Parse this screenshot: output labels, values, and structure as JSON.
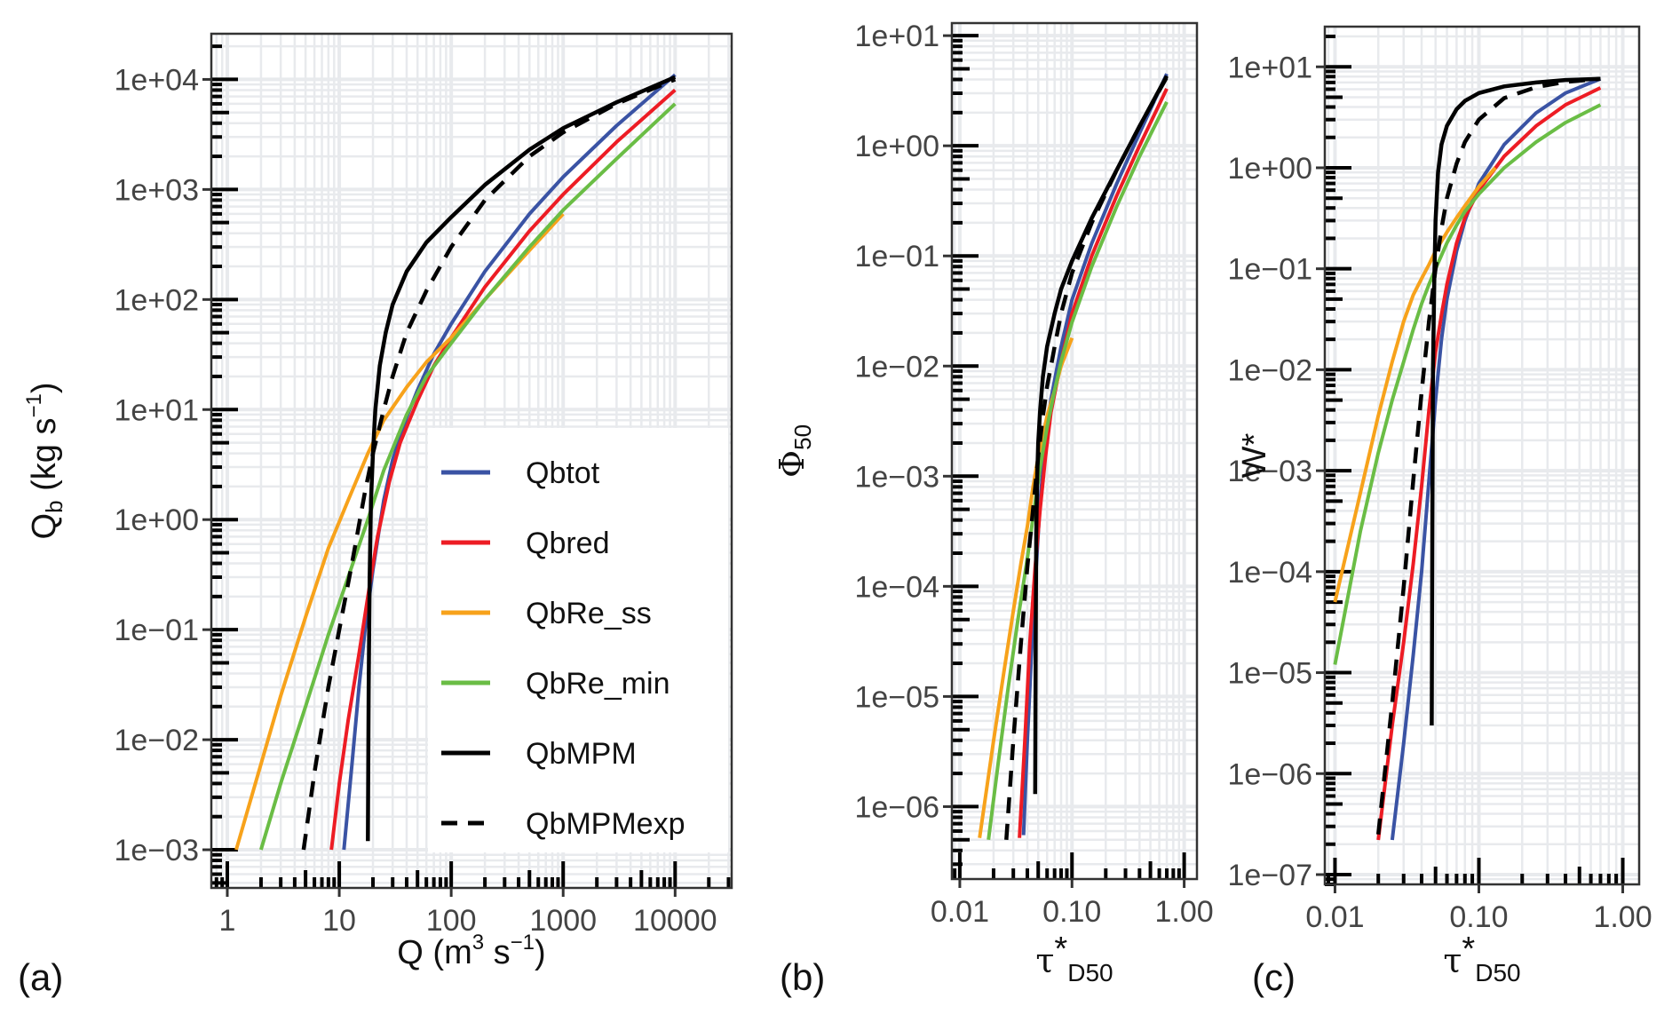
{
  "colors": {
    "Qbtot": "#3a53a4",
    "Qbred": "#ed1c24",
    "QbRe_ss": "#f7a21b",
    "QbRe_min": "#6abd45",
    "QbMPM": "#000000",
    "QbMPMexp": "#000000",
    "grid": "#e8eaed",
    "tick_label": "#444444"
  },
  "legend": {
    "placement": "inside-bottom-right of panel (a)",
    "items": [
      {
        "name": "Qbtot",
        "style": "solid"
      },
      {
        "name": "Qbred",
        "style": "solid"
      },
      {
        "name": "QbRe_ss",
        "style": "solid"
      },
      {
        "name": "QbRe_min",
        "style": "solid"
      },
      {
        "name": "QbMPM",
        "style": "solid"
      },
      {
        "name": "QbMPMexp",
        "style": "dashed"
      }
    ]
  },
  "chart_data": [
    {
      "panel_label": "(a)",
      "type": "line",
      "xscale": "log",
      "yscale": "log",
      "xlabel": "Q (m³ s⁻¹)",
      "xlabel_parts": {
        "main": "Q (m",
        "sup1": "3",
        "mid": " s",
        "sup2": "−1",
        "end": ")"
      },
      "ylabel": "Qb (kg s⁻¹)",
      "ylabel_parts": {
        "main": "Q",
        "sub": "b",
        "mid": " (kg s",
        "sup": "−1",
        "end": ")"
      },
      "xlim": [
        0.72,
        32000
      ],
      "ylim": [
        0.00045,
        26000
      ],
      "xticks": [
        1,
        10,
        100,
        1000,
        10000
      ],
      "xtick_labels": [
        "1",
        "10",
        "100",
        "1000",
        "10000"
      ],
      "yticks": [
        0.001,
        0.01,
        0.1,
        1,
        10,
        100,
        1000,
        10000
      ],
      "ytick_labels": [
        "1e−03",
        "1e−02",
        "1e−01",
        "1e+00",
        "1e+01",
        "1e+02",
        "1e+03",
        "1e+04"
      ],
      "grid": true,
      "series": [
        {
          "name": "Qbtot",
          "x": [
            11,
            13,
            15,
            17,
            20,
            25,
            30,
            40,
            50,
            70,
            100,
            200,
            500,
            1000,
            3000,
            10000
          ],
          "y": [
            0.001,
            0.006,
            0.03,
            0.1,
            0.35,
            1.5,
            3.5,
            8.5,
            15,
            32,
            60,
            180,
            600,
            1300,
            3800,
            11000
          ]
        },
        {
          "name": "Qbred",
          "x": [
            8.5,
            10,
            12,
            15,
            18,
            22,
            28,
            35,
            50,
            70,
            100,
            200,
            500,
            1000,
            3000,
            10000
          ],
          "y": [
            0.001,
            0.004,
            0.015,
            0.06,
            0.2,
            0.7,
            2.2,
            5,
            12,
            25,
            45,
            130,
            420,
            900,
            2700,
            8000
          ]
        },
        {
          "name": "QbRe_ss",
          "x": [
            1.2,
            2,
            3,
            5,
            8,
            12,
            18,
            25,
            40,
            60,
            100,
            200,
            500,
            1000
          ],
          "y": [
            0.001,
            0.006,
            0.025,
            0.13,
            0.55,
            1.5,
            4,
            8,
            16,
            27,
            45,
            100,
            280,
            600
          ]
        },
        {
          "name": "QbRe_min",
          "x": [
            2,
            3,
            5,
            8,
            12,
            18,
            25,
            40,
            60,
            100,
            200,
            500,
            1000,
            3000,
            10000
          ],
          "y": [
            0.001,
            0.004,
            0.02,
            0.09,
            0.3,
            1,
            2.8,
            9,
            20,
            40,
            100,
            300,
            650,
            1900,
            6000
          ]
        },
        {
          "name": "QbMPM",
          "x": [
            18,
            18.3,
            18.7,
            19.2,
            20,
            21,
            23,
            26,
            30,
            40,
            60,
            100,
            200,
            500,
            1000,
            3000,
            10000
          ],
          "y": [
            0.0012,
            0.03,
            0.3,
            1.5,
            4,
            10,
            25,
            50,
            90,
            180,
            330,
            560,
            1100,
            2300,
            3600,
            6200,
            10500
          ]
        },
        {
          "name": "QbMPMexp",
          "x": [
            4.8,
            6,
            8,
            10,
            13,
            17,
            20,
            25,
            30,
            40,
            60,
            100,
            200,
            500,
            1000,
            3000,
            10000
          ],
          "y": [
            0.001,
            0.005,
            0.03,
            0.1,
            0.4,
            1.8,
            4,
            10,
            20,
            50,
            120,
            300,
            800,
            2000,
            3300,
            6000,
            10000
          ]
        }
      ]
    },
    {
      "panel_label": "(b)",
      "type": "line",
      "xscale": "log",
      "yscale": "log",
      "xlabel": "τ*D50",
      "xlabel_parts": {
        "main": "τ",
        "sup": "*",
        "sub": "D50"
      },
      "ylabel": "Φ50",
      "ylabel_parts": {
        "main": "Φ",
        "sub": "50"
      },
      "xlim": [
        0.0085,
        1.3
      ],
      "ylim": [
        2.2e-07,
        13
      ],
      "xticks": [
        0.01,
        0.1,
        1
      ],
      "xtick_labels": [
        "0.01",
        "0.10",
        "1.00"
      ],
      "yticks": [
        1e-06,
        1e-05,
        0.0001,
        0.001,
        0.01,
        0.1,
        1,
        10
      ],
      "ytick_labels": [
        "1e−06",
        "1e−05",
        "1e−04",
        "1e−03",
        "1e−02",
        "1e−01",
        "1e+00",
        "1e+01"
      ],
      "grid": true,
      "series": [
        {
          "name": "Qbtot",
          "x": [
            0.037,
            0.04,
            0.044,
            0.048,
            0.052,
            0.058,
            0.065,
            0.08,
            0.1,
            0.15,
            0.25,
            0.4,
            0.7
          ],
          "y": [
            5.5e-07,
            4e-06,
            3e-05,
            0.00015,
            0.0006,
            0.002,
            0.005,
            0.015,
            0.04,
            0.13,
            0.45,
            1.3,
            4.5
          ]
        },
        {
          "name": "Qbred",
          "x": [
            0.034,
            0.038,
            0.042,
            0.047,
            0.052,
            0.058,
            0.065,
            0.08,
            0.1,
            0.15,
            0.25,
            0.4,
            0.7
          ],
          "y": [
            5.2e-07,
            4e-06,
            3e-05,
            0.00015,
            0.0005,
            0.0015,
            0.0038,
            0.011,
            0.03,
            0.1,
            0.35,
            1,
            3.3
          ]
        },
        {
          "name": "QbRe_ss",
          "x": [
            0.015,
            0.02,
            0.025,
            0.03,
            0.035,
            0.04,
            0.045,
            0.05,
            0.06,
            0.07,
            0.08,
            0.1
          ],
          "y": [
            5.2e-07,
            4e-06,
            1.8e-05,
            6e-05,
            0.00016,
            0.00035,
            0.0008,
            0.0015,
            0.0035,
            0.006,
            0.01,
            0.018
          ]
        },
        {
          "name": "QbRe_min",
          "x": [
            0.018,
            0.022,
            0.027,
            0.033,
            0.04,
            0.046,
            0.052,
            0.06,
            0.07,
            0.08,
            0.1,
            0.15,
            0.25,
            0.4,
            0.7
          ],
          "y": [
            5e-07,
            2.5e-06,
            1.2e-05,
            5e-05,
            0.00018,
            0.0005,
            0.0012,
            0.0028,
            0.006,
            0.011,
            0.025,
            0.08,
            0.28,
            0.8,
            2.5
          ]
        },
        {
          "name": "QbMPM",
          "x": [
            0.047,
            0.0475,
            0.048,
            0.049,
            0.05,
            0.052,
            0.055,
            0.06,
            0.07,
            0.08,
            0.1,
            0.15,
            0.25,
            0.4,
            0.7
          ],
          "y": [
            1.3e-06,
            3e-05,
            0.0003,
            0.001,
            0.002,
            0.004,
            0.008,
            0.015,
            0.03,
            0.05,
            0.09,
            0.22,
            0.6,
            1.5,
            4.3
          ]
        },
        {
          "name": "QbMPMexp",
          "x": [
            0.026,
            0.03,
            0.035,
            0.04,
            0.045,
            0.05,
            0.055,
            0.06,
            0.07,
            0.08,
            0.1,
            0.15,
            0.25,
            0.4,
            0.7
          ],
          "y": [
            5e-07,
            4e-06,
            3e-05,
            0.00015,
            0.0005,
            0.0015,
            0.0035,
            0.0065,
            0.015,
            0.03,
            0.07,
            0.2,
            0.6,
            1.5,
            4.2
          ]
        }
      ]
    },
    {
      "panel_label": "(c)",
      "type": "line",
      "xscale": "log",
      "yscale": "log",
      "xlabel": "τ*D50",
      "xlabel_parts": {
        "main": "τ",
        "sup": "*",
        "sub": "D50"
      },
      "ylabel": "W*",
      "ylabel_parts": {
        "main": "W*"
      },
      "xlim": [
        0.0085,
        1.3
      ],
      "ylim": [
        8e-08,
        25
      ],
      "xticks": [
        0.01,
        0.1,
        1
      ],
      "xtick_labels": [
        "0.01",
        "0.10",
        "1.00"
      ],
      "yticks": [
        1e-07,
        1e-06,
        1e-05,
        0.0001,
        0.001,
        0.01,
        0.1,
        1,
        10
      ],
      "ytick_labels": [
        "1e−07",
        "1e−06",
        "1e−05",
        "1e−04",
        "1e−03",
        "1e−02",
        "1e−01",
        "1e+00",
        "1e+01"
      ],
      "grid": true,
      "series": [
        {
          "name": "Qbtot",
          "x": [
            0.025,
            0.03,
            0.035,
            0.04,
            0.045,
            0.05,
            0.055,
            0.06,
            0.07,
            0.08,
            0.1,
            0.15,
            0.25,
            0.4,
            0.7
          ],
          "y": [
            2.2e-07,
            2e-06,
            1.5e-05,
            0.0001,
            0.0008,
            0.005,
            0.02,
            0.05,
            0.15,
            0.3,
            0.7,
            1.7,
            3.5,
            5.5,
            7.6
          ]
        },
        {
          "name": "Qbred",
          "x": [
            0.02,
            0.025,
            0.03,
            0.035,
            0.04,
            0.045,
            0.05,
            0.055,
            0.06,
            0.07,
            0.08,
            0.1,
            0.15,
            0.25,
            0.4,
            0.7
          ],
          "y": [
            2.2e-07,
            3e-06,
            2e-05,
            0.00012,
            0.0007,
            0.004,
            0.015,
            0.035,
            0.07,
            0.18,
            0.32,
            0.6,
            1.3,
            2.6,
            4.2,
            6.2
          ]
        },
        {
          "name": "QbRe_ss",
          "x": [
            0.01,
            0.015,
            0.02,
            0.025,
            0.03,
            0.035,
            0.04,
            0.045,
            0.05,
            0.06,
            0.07,
            0.08,
            0.1,
            0.13
          ],
          "y": [
            5e-05,
            0.0006,
            0.0035,
            0.012,
            0.03,
            0.055,
            0.08,
            0.11,
            0.15,
            0.23,
            0.32,
            0.42,
            0.65,
            1.0
          ]
        },
        {
          "name": "QbRe_min",
          "x": [
            0.01,
            0.015,
            0.02,
            0.025,
            0.03,
            0.035,
            0.04,
            0.045,
            0.05,
            0.06,
            0.07,
            0.08,
            0.1,
            0.15,
            0.25,
            0.4,
            0.7
          ],
          "y": [
            1.2e-05,
            0.00025,
            0.0015,
            0.005,
            0.012,
            0.025,
            0.045,
            0.07,
            0.1,
            0.18,
            0.27,
            0.37,
            0.55,
            1.0,
            1.8,
            2.8,
            4.2
          ]
        },
        {
          "name": "QbMPM",
          "x": [
            0.047,
            0.0475,
            0.048,
            0.049,
            0.05,
            0.052,
            0.055,
            0.06,
            0.07,
            0.08,
            0.1,
            0.15,
            0.25,
            0.4,
            0.7
          ],
          "y": [
            3e-06,
            0.0003,
            0.01,
            0.08,
            0.3,
            0.9,
            1.7,
            2.6,
            3.8,
            4.6,
            5.5,
            6.4,
            7.0,
            7.4,
            7.6
          ]
        },
        {
          "name": "QbMPMexp",
          "x": [
            0.02,
            0.025,
            0.03,
            0.035,
            0.04,
            0.045,
            0.05,
            0.055,
            0.06,
            0.07,
            0.08,
            0.1,
            0.15,
            0.25,
            0.4,
            0.7
          ],
          "y": [
            2.5e-07,
            5e-06,
            7e-05,
            0.0008,
            0.006,
            0.03,
            0.1,
            0.25,
            0.5,
            1.1,
            1.8,
            3.0,
            4.9,
            6.3,
            7.1,
            7.6
          ]
        }
      ]
    }
  ]
}
